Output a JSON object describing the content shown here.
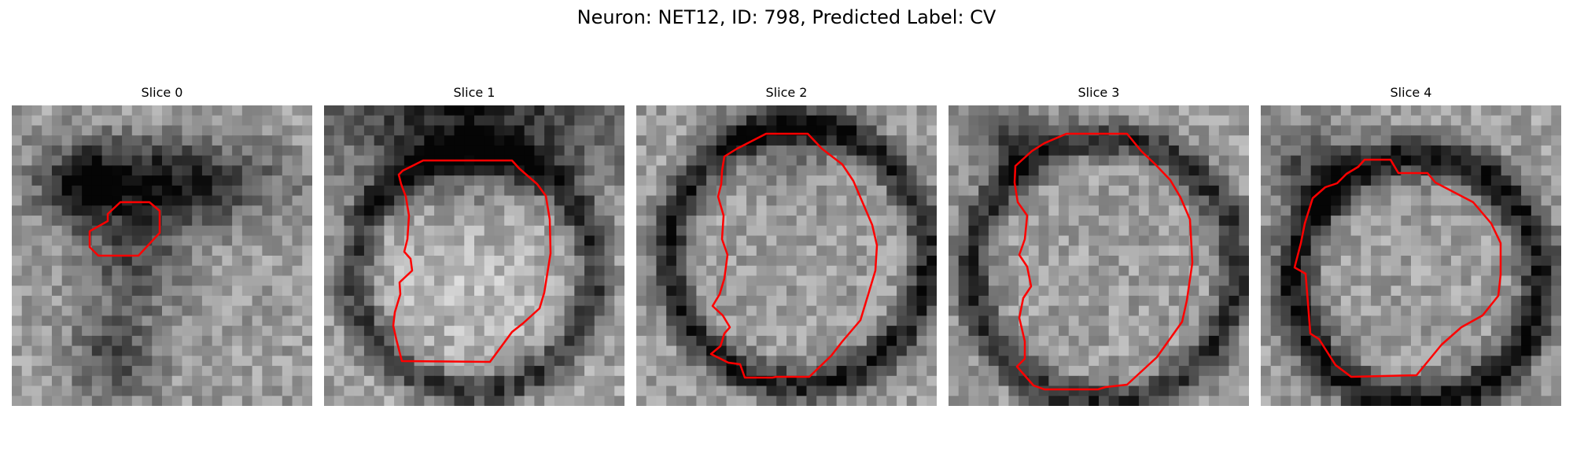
{
  "figure": {
    "title": "Neuron: NET12, ID: 798, Predicted Label: CV",
    "outline_color": "#ff0000",
    "colormap": "grayscale",
    "grid_size": 30
  },
  "slices": [
    {
      "title": "Slice 0"
    },
    {
      "title": "Slice 1"
    },
    {
      "title": "Slice 2"
    },
    {
      "title": "Slice 3"
    },
    {
      "title": "Slice 4"
    }
  ]
}
